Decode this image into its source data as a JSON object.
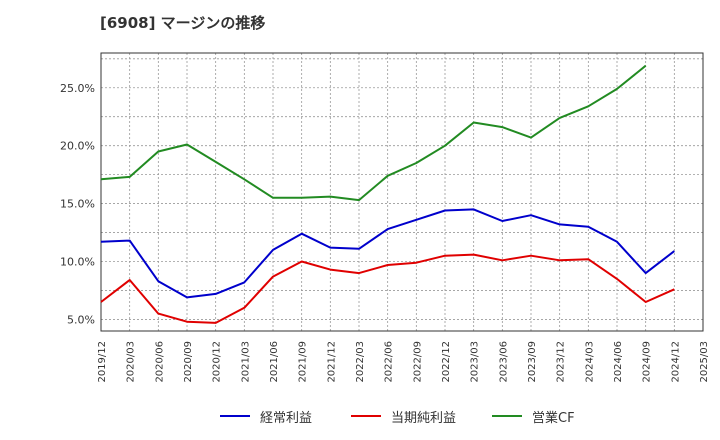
{
  "title": "[6908]  マージンの推移",
  "chart_data": {
    "type": "line",
    "x": [
      "2019/12",
      "2020/03",
      "2020/06",
      "2020/09",
      "2020/12",
      "2021/03",
      "2021/06",
      "2021/09",
      "2021/12",
      "2022/03",
      "2022/06",
      "2022/09",
      "2022/12",
      "2023/03",
      "2023/06",
      "2023/09",
      "2023/12",
      "2024/03",
      "2024/06",
      "2024/09",
      "2024/12",
      "2025/03"
    ],
    "yticks": [
      "5.0%",
      "10.0%",
      "15.0%",
      "20.0%",
      "25.0%"
    ],
    "ytick_values": [
      5,
      10,
      15,
      20,
      25
    ],
    "ylim": [
      4,
      28
    ],
    "grid": true,
    "legend_position": "bottom",
    "series": [
      {
        "name": "経常利益",
        "color": "#0000cc",
        "values": [
          11.7,
          11.8,
          8.3,
          6.9,
          7.2,
          8.2,
          11.0,
          12.4,
          11.2,
          11.1,
          12.8,
          13.6,
          14.4,
          14.5,
          13.5,
          14.0,
          13.2,
          13.0,
          11.7,
          9.0,
          10.9,
          null
        ]
      },
      {
        "name": "当期純利益",
        "color": "#e00000",
        "values": [
          6.5,
          8.4,
          5.5,
          4.8,
          4.7,
          6.0,
          8.7,
          10.0,
          9.3,
          9.0,
          9.7,
          9.9,
          10.5,
          10.6,
          10.1,
          10.5,
          10.1,
          10.2,
          8.5,
          6.5,
          7.6,
          null
        ]
      },
      {
        "name": "営業CF",
        "color": "#228b22",
        "values": [
          17.1,
          17.3,
          19.5,
          20.1,
          18.6,
          17.1,
          15.5,
          15.5,
          15.6,
          15.3,
          17.4,
          18.5,
          20.0,
          22.0,
          21.6,
          20.7,
          22.4,
          23.4,
          24.9,
          26.9,
          null,
          null
        ]
      }
    ]
  }
}
